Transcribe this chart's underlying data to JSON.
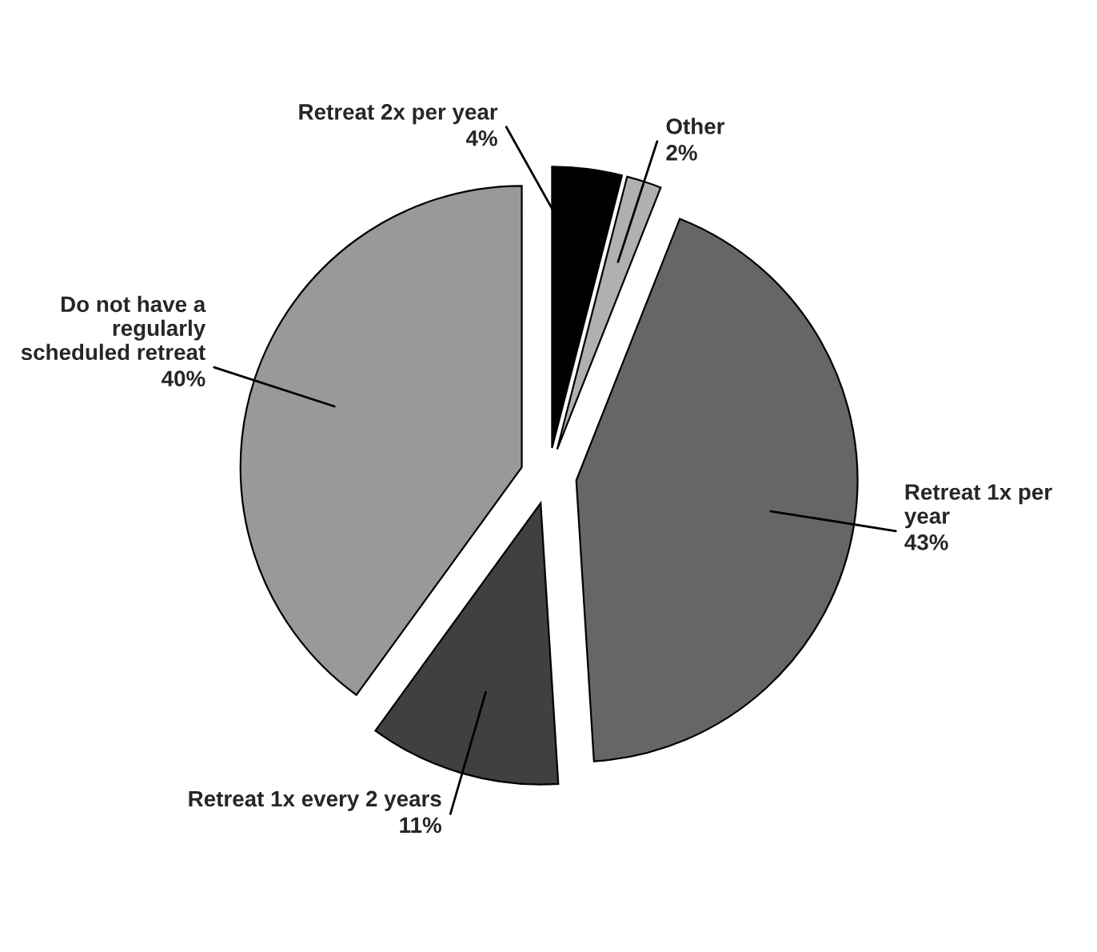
{
  "chart_data": {
    "type": "pie",
    "categories": [
      "Retreat 2x per year",
      "Other",
      "Retreat 1x per year",
      "Retreat 1x every 2 years",
      "Do not have a regularly scheduled retreat"
    ],
    "values": [
      4,
      2,
      43,
      11,
      40
    ],
    "colors": [
      "#000000",
      "#b0b0b0",
      "#666666",
      "#404040",
      "#999999"
    ],
    "value_labels": [
      "4%",
      "2%",
      "43%",
      "11%",
      "40%"
    ],
    "legend": false
  }
}
